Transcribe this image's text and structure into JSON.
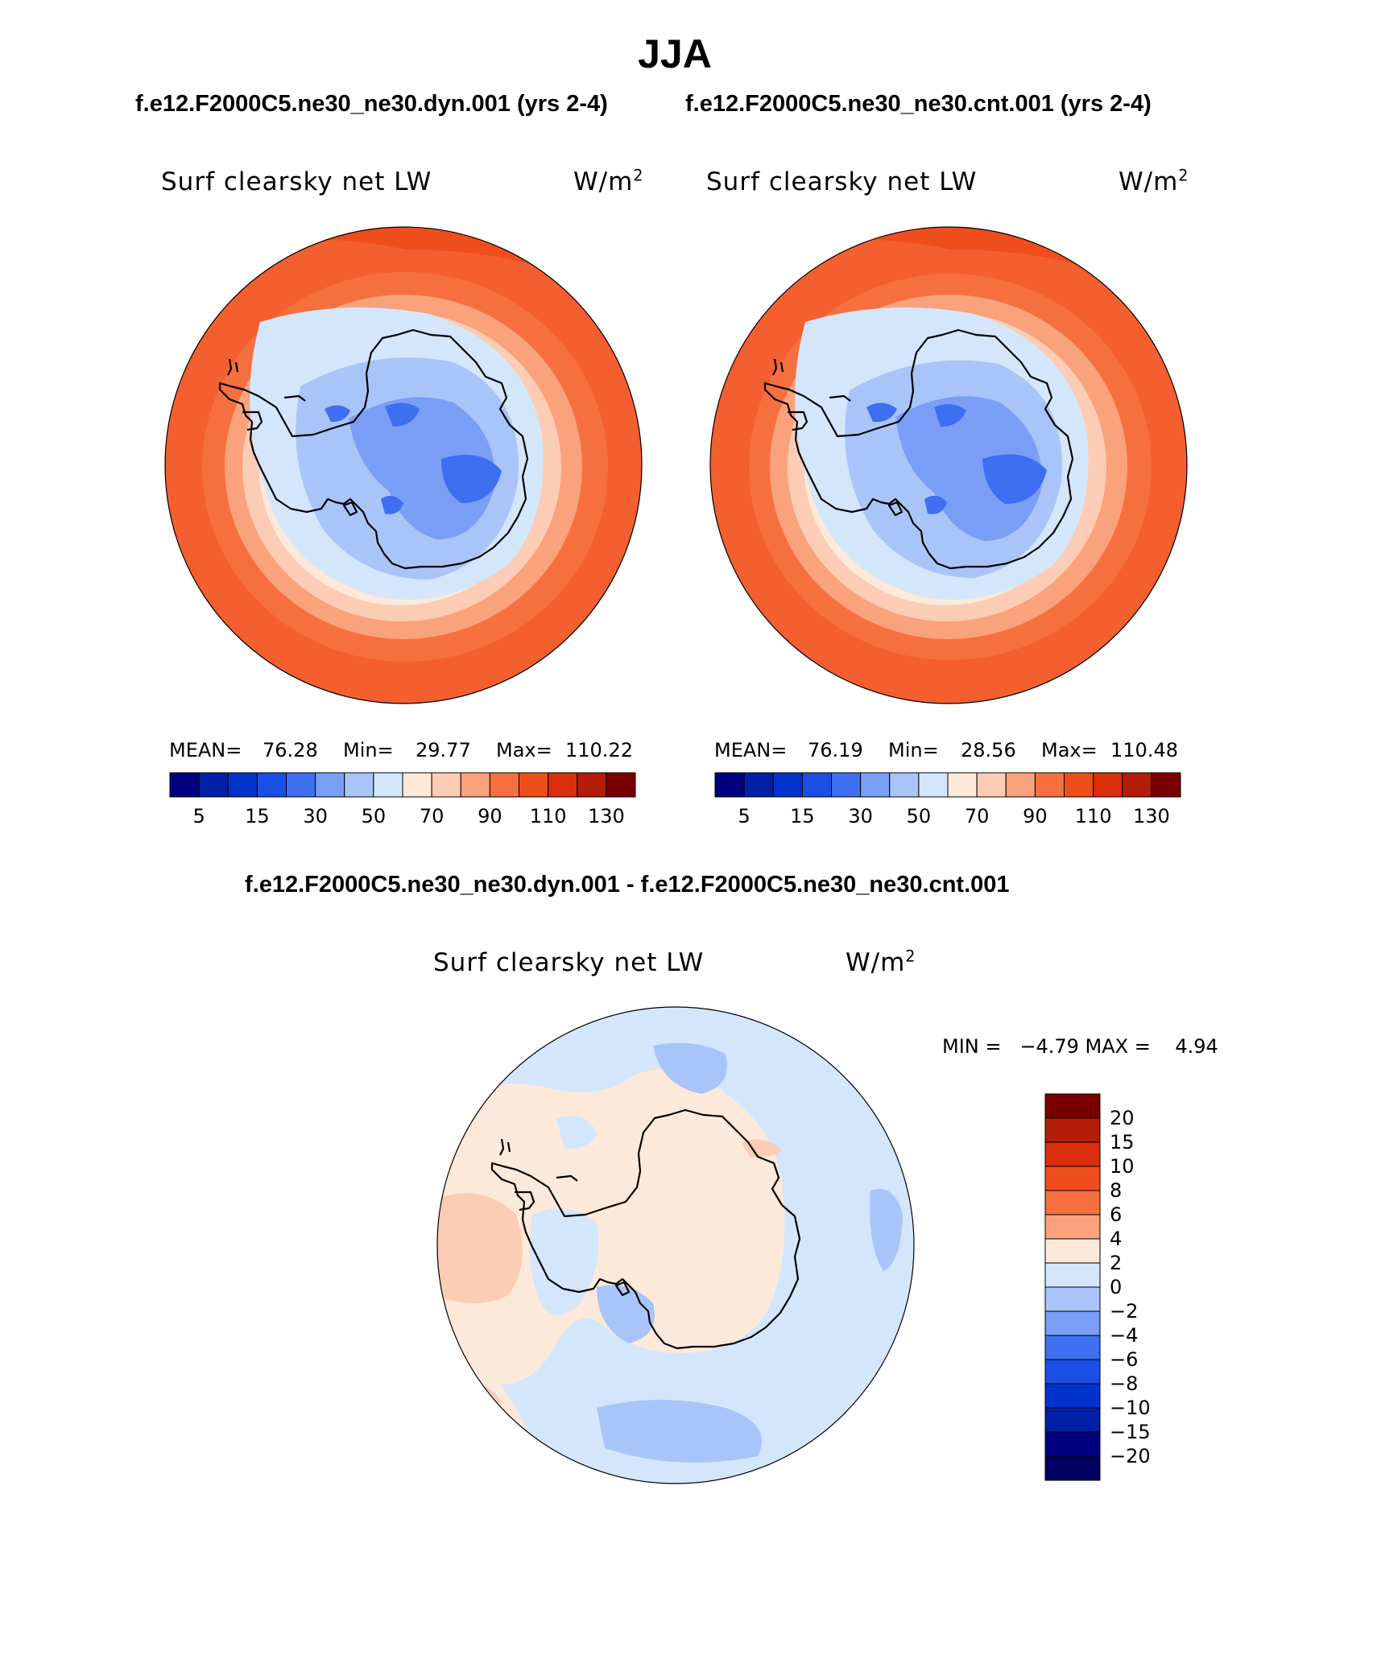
{
  "title": "JJA",
  "subtitle_left": "f.e12.F2000C5.ne30_ne30.dyn.001 (yrs 2-4)",
  "subtitle_right": "f.e12.F2000C5.ne30_ne30.cnt.001 (yrs 2-4)",
  "diff_title": "f.e12.F2000C5.ne30_ne30.dyn.001 - f.e12.F2000C5.ne30_ne30.cnt.001",
  "panels": [
    {
      "variable": "Surf clearsky net LW",
      "units_base": "W/m",
      "units_exp": "2",
      "mean_label": "MEAN=",
      "mean": "76.28",
      "min_label": "Min=",
      "min": "29.77",
      "max_label": "Max=",
      "max": "110.22"
    },
    {
      "variable": "Surf clearsky net LW",
      "units_base": "W/m",
      "units_exp": "2",
      "mean_label": "MEAN=",
      "mean": "76.19",
      "min_label": "Min=",
      "min": "28.56",
      "max_label": "Max=",
      "max": "110.48"
    }
  ],
  "diff_panel": {
    "variable": "Surf clearsky net LW",
    "units_base": "W/m",
    "units_exp": "2",
    "stats": "MIN =   −4.79 MAX =    4.94"
  },
  "abs_colorbar": {
    "colors": [
      "#000080",
      "#0020a6",
      "#0033cc",
      "#1a4fe6",
      "#3d6ff0",
      "#7a9ef5",
      "#a9c4f8",
      "#d4e6fb",
      "#fde9d9",
      "#fcccb5",
      "#f9a27c",
      "#f6703f",
      "#f04d1c",
      "#db2e0c",
      "#b31c08",
      "#7a0000"
    ],
    "tick_labels": [
      "5",
      "15",
      "30",
      "50",
      "70",
      "90",
      "110",
      "130"
    ]
  },
  "diff_colorbar": {
    "colors": [
      "#7a0000",
      "#b31c08",
      "#db2e0c",
      "#f04d1c",
      "#f6703f",
      "#f9a27c",
      "#fde9d9",
      "#d4e6fb",
      "#a9c4f8",
      "#7a9ef5",
      "#3d6ff0",
      "#1a4fe6",
      "#0033cc",
      "#0020a6",
      "#000080",
      "#000060"
    ],
    "tick_labels": [
      "20",
      "15",
      "10",
      "8",
      "6",
      "4",
      "2",
      "0",
      "−2",
      "−4",
      "−6",
      "−8",
      "−10",
      "−15",
      "−20"
    ]
  },
  "map_colors": {
    "ocean_warm": "#f04d1c",
    "ocean_mid": "#f6703f",
    "ring_1": "#f9a27c",
    "ring_2": "#fcccb5",
    "ring_3": "#fde9d9",
    "coast_light": "#d4e6fb",
    "interior_1": "#a9c4f8",
    "interior_2": "#7a9ef5",
    "interior_3": "#3d6ff0",
    "diff_pos": "#fde9d9",
    "diff_pos2": "#fcccb5",
    "diff_neg": "#d4e6fb",
    "diff_neg2": "#a9c4f8",
    "coastline": "#000000"
  }
}
